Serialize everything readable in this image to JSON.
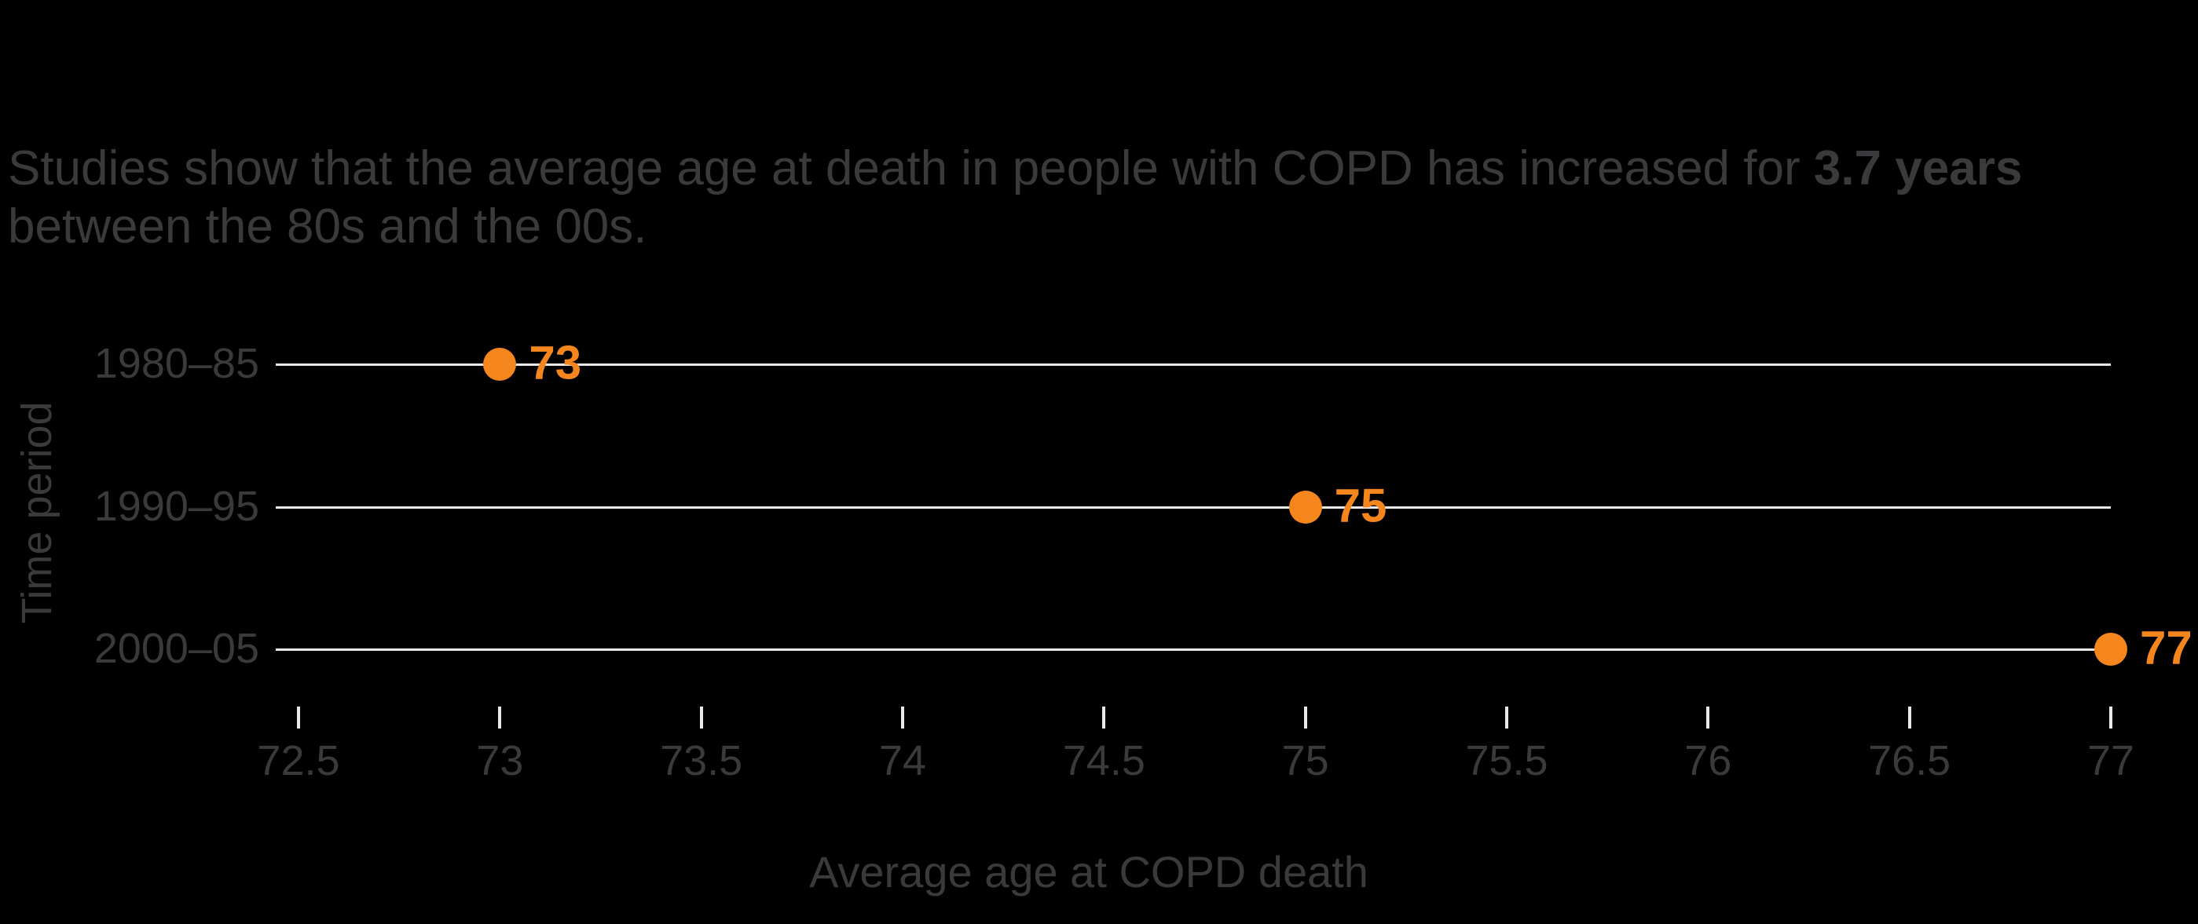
{
  "colors": {
    "background": "#000000",
    "text": "#3a3a3c",
    "grid_line": "#e9e9e9",
    "accent_orange": "#f5861d"
  },
  "title": {
    "before": "Studies show that the average age at death in people with COPD has increased for ",
    "bold": "3.7 years",
    "after": " between the 80s and the 00s."
  },
  "chart_data": {
    "type": "scatter",
    "subtype": "dot-plot-horizontal",
    "categories": [
      "1980–85",
      "1990–95",
      "2000–05"
    ],
    "values": [
      73,
      75,
      77
    ],
    "value_labels": [
      "73",
      "75",
      "77"
    ],
    "title": "Studies show that the average age at death in people with COPD has increased for 3.7 years between the 80s and the 00s.",
    "xlabel": "Average age at COPD death",
    "ylabel": "Time period",
    "xlim": [
      72.44,
      77
    ],
    "x_ticks": [
      72.5,
      73,
      73.5,
      74,
      74.5,
      75,
      75.5,
      76,
      76.5,
      77
    ],
    "x_tick_labels": [
      "72.5",
      "73",
      "73.5",
      "74",
      "74.5",
      "75",
      "75.5",
      "76",
      "76.5",
      "77"
    ],
    "grid": "horizontal-row-lines",
    "legend": "none"
  }
}
